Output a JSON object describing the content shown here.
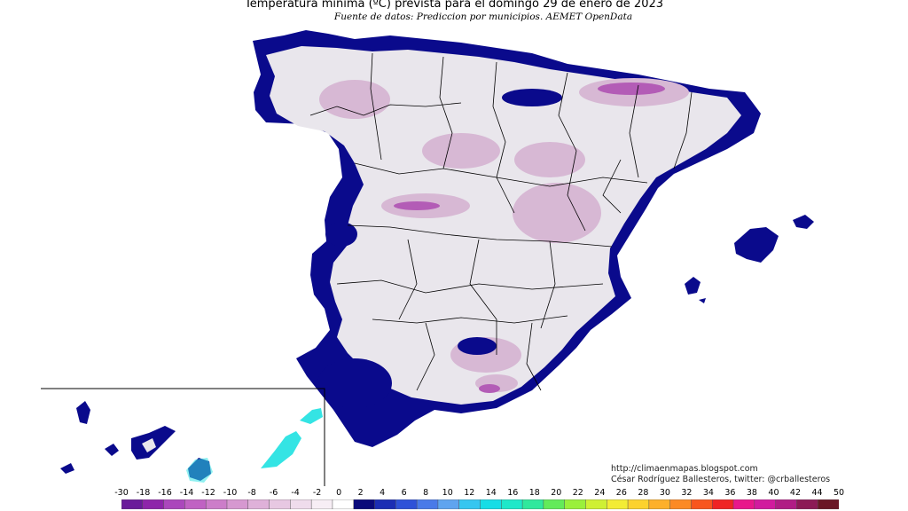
{
  "map": {
    "title": "Temperatura mínima (ºC) prevista para el domingo 29 de enero de 2023",
    "subtitle": "Fuente de datos: Prediccion por municipios. AEMET OpenData",
    "credits": {
      "blog": "http://climaenmapas.blogspot.com",
      "author": "César Rodríguez Ballesteros, twitter: @crballesteros"
    },
    "colors": {
      "coast_cold": "#0a0a8c",
      "interior_light": "#e9e6ec",
      "interior_pink": "#d7b8d4",
      "highland_magenta": "#b35cb6",
      "borders": "#000000",
      "canary_cyan": "#34e4e4"
    }
  },
  "legend": {
    "unit": "ºC",
    "ticks": [
      "-30",
      "-18",
      "-16",
      "-14",
      "-12",
      "-10",
      "-8",
      "-6",
      "-4",
      "-2",
      "0",
      "2",
      "4",
      "6",
      "8",
      "10",
      "12",
      "14",
      "16",
      "18",
      "20",
      "22",
      "24",
      "26",
      "28",
      "30",
      "32",
      "34",
      "36",
      "38",
      "40",
      "42",
      "44",
      "50"
    ],
    "colors": [
      "#6a1b9a",
      "#8e24aa",
      "#ab47bc",
      "#c062c3",
      "#cc7dc9",
      "#d698d0",
      "#dfb1d9",
      "#e7c8e2",
      "#efdcec",
      "#f7eef5",
      "#ffffff",
      "#0a0a7a",
      "#1c2eb4",
      "#2f52d8",
      "#4a7ae8",
      "#5fa4ef",
      "#36c6f0",
      "#16dde6",
      "#1ee8c9",
      "#30e89d",
      "#63eb5a",
      "#9af03b",
      "#cff034",
      "#f3ec35",
      "#fcd22e",
      "#fdb02a",
      "#fc8a24",
      "#f8561e",
      "#ef2424",
      "#e8178b",
      "#d11b9e",
      "#b01d85",
      "#8c1a56",
      "#6b1626"
    ]
  }
}
